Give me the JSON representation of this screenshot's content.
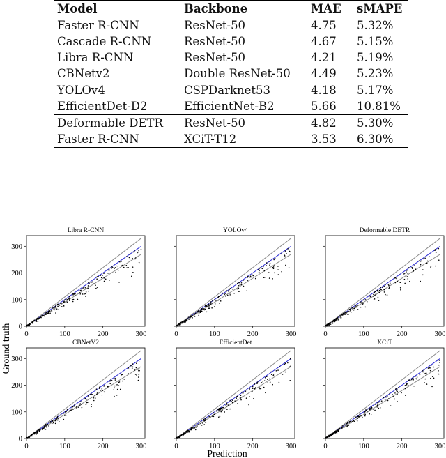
{
  "table": {
    "headers": [
      "Model",
      "Backbone",
      "MAE",
      "sMAPE"
    ],
    "groups": [
      [
        [
          "Faster R-CNN",
          "ResNet-50",
          "4.75",
          "5.32%"
        ],
        [
          "Cascade R-CNN",
          "ResNet-50",
          "4.67",
          "5.15%"
        ],
        [
          "Libra R-CNN",
          "ResNet-50",
          "4.21",
          "5.19%"
        ],
        [
          "CBNetv2",
          "Double ResNet-50",
          "4.49",
          "5.23%"
        ]
      ],
      [
        [
          "YOLOv4",
          "CSPDarknet53",
          "4.18",
          "5.17%"
        ],
        [
          "EfficientDet-D2",
          "EfficientNet-B2",
          "5.66",
          "10.81%"
        ]
      ],
      [
        [
          "Deformable DETR",
          "ResNet-50",
          "4.82",
          "5.30%"
        ],
        [
          "Faster R-CNN",
          "XCiT-T12",
          "3.53",
          "6.30%"
        ]
      ]
    ]
  },
  "figure": {
    "xlabel": "Prediction",
    "ylabel": "Ground truth",
    "colors": {
      "identity_line": "#2b2bd6",
      "bound_lines": "#8c8c8c",
      "points": "#000000"
    }
  },
  "chart_data": [
    {
      "type": "scatter",
      "title": "Libra R-CNN",
      "xlim": [
        0,
        310
      ],
      "ylim": [
        0,
        340
      ],
      "x_ticks": [
        "0",
        "100",
        "200",
        "300"
      ],
      "y_ticks": [
        "0",
        "100",
        "200",
        "300"
      ],
      "reference_lines": [
        {
          "slope": 1.0
        },
        {
          "slope": 1.1
        },
        {
          "slope": 0.9
        }
      ],
      "seed": 11
    },
    {
      "type": "scatter",
      "title": "YOLOv4",
      "xlim": [
        0,
        310
      ],
      "ylim": [
        0,
        340
      ],
      "x_ticks": [
        "0",
        "100",
        "200",
        "300"
      ],
      "y_ticks": [
        "0",
        "100",
        "200",
        "300"
      ],
      "reference_lines": [
        {
          "slope": 1.0
        },
        {
          "slope": 1.1
        },
        {
          "slope": 0.9
        }
      ],
      "seed": 23
    },
    {
      "type": "scatter",
      "title": "Deformable DETR",
      "xlim": [
        0,
        310
      ],
      "ylim": [
        0,
        340
      ],
      "x_ticks": [
        "0",
        "100",
        "200",
        "300"
      ],
      "y_ticks": [
        "0",
        "100",
        "200",
        "300"
      ],
      "reference_lines": [
        {
          "slope": 1.0
        },
        {
          "slope": 1.1
        },
        {
          "slope": 0.9
        }
      ],
      "seed": 37
    },
    {
      "type": "scatter",
      "title": "CBNetV2",
      "xlim": [
        0,
        310
      ],
      "ylim": [
        0,
        340
      ],
      "x_ticks": [
        "0",
        "100",
        "200",
        "300"
      ],
      "y_ticks": [
        "0",
        "100",
        "200",
        "300"
      ],
      "reference_lines": [
        {
          "slope": 1.0
        },
        {
          "slope": 1.1
        },
        {
          "slope": 0.9
        }
      ],
      "seed": 41
    },
    {
      "type": "scatter",
      "title": "EfficientDet",
      "xlim": [
        0,
        310
      ],
      "ylim": [
        0,
        340
      ],
      "x_ticks": [
        "0",
        "100",
        "200",
        "300"
      ],
      "y_ticks": [
        "0",
        "100",
        "200",
        "300"
      ],
      "reference_lines": [
        {
          "slope": 1.0
        },
        {
          "slope": 1.1
        },
        {
          "slope": 0.9
        }
      ],
      "seed": 53
    },
    {
      "type": "scatter",
      "title": "XCiT",
      "xlim": [
        0,
        310
      ],
      "ylim": [
        0,
        340
      ],
      "x_ticks": [
        "0",
        "100",
        "200",
        "300"
      ],
      "y_ticks": [
        "0",
        "100",
        "200",
        "300"
      ],
      "reference_lines": [
        {
          "slope": 1.0
        },
        {
          "slope": 1.1
        },
        {
          "slope": 0.9
        }
      ],
      "seed": 67
    }
  ]
}
